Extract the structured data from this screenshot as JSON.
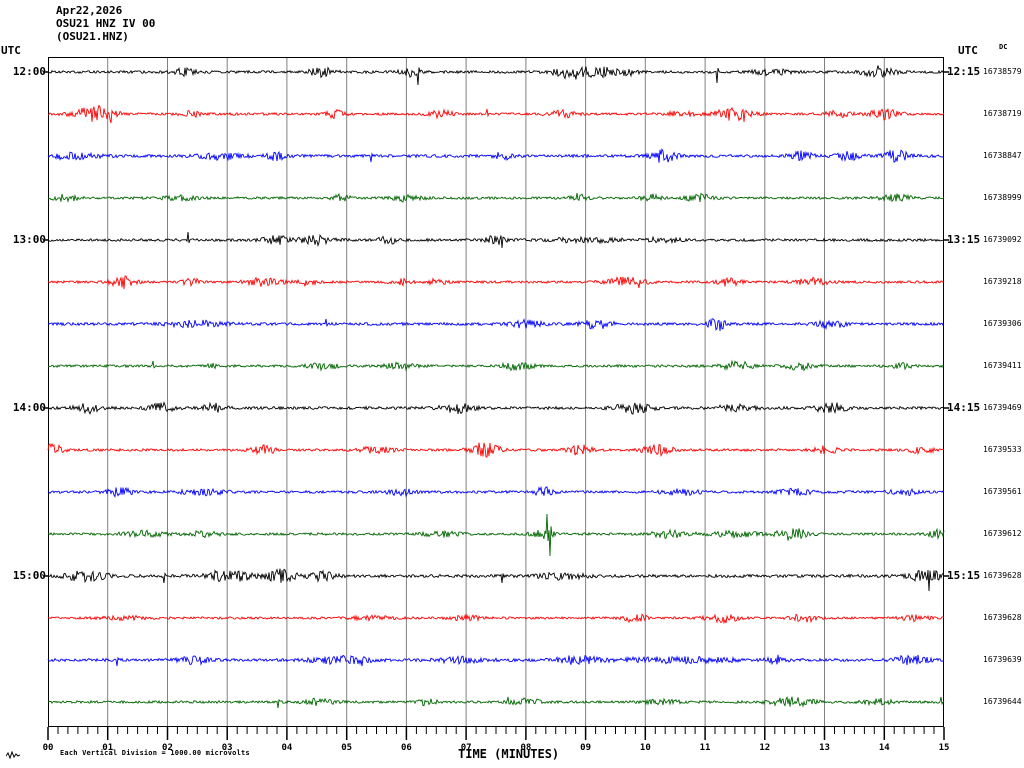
{
  "header": {
    "date": "Apr22,2026",
    "station": "OSU21 HNZ IV 00",
    "channel": "(OSU21.HNZ)"
  },
  "labels": {
    "utc_left": "UTC",
    "utc_right": "UTC",
    "dc": "DC",
    "xlabel": "TIME (MINUTES)",
    "scale_note": "Each Vertical Division = 1000.00 microvolts"
  },
  "chart_data": {
    "type": "seismogram-helicorder",
    "title": "OSU21 HNZ IV 00 (OSU21.HNZ) Apr22,2026",
    "x_axis": {
      "label": "TIME (MINUTES)",
      "min": 0,
      "max": 15,
      "tick_labels": [
        "00",
        "01",
        "02",
        "03",
        "04",
        "05",
        "06",
        "07",
        "08",
        "09",
        "10",
        "11",
        "12",
        "13",
        "14",
        "15"
      ],
      "minor_ticks_per_minute": 6
    },
    "grid": {
      "vertical_lines_every_minute": true,
      "color": "#808080"
    },
    "colors": {
      "black": "#000000",
      "red": "#ff0000",
      "blue": "#0000ff",
      "green": "#006600"
    },
    "scale_note": "Each Vertical Division = 1000.00 microvolts",
    "traces": [
      {
        "color": "black",
        "left_time": "12:00",
        "right_time": "12:15",
        "counter": "16738579",
        "base_amp": 1.3,
        "events": [
          {
            "m": 2.3,
            "w": 0.15,
            "a": 3
          },
          {
            "m": 4.55,
            "w": 0.2,
            "a": 4
          },
          {
            "m": 6.05,
            "w": 0.15,
            "a": 3
          },
          {
            "m": 8.8,
            "w": 0.3,
            "a": 5
          },
          {
            "m": 9.3,
            "w": 0.2,
            "a": 3.5
          },
          {
            "m": 9.7,
            "w": 0.15,
            "a": 3
          },
          {
            "m": 12.1,
            "w": 0.3,
            "a": 2
          },
          {
            "m": 13.9,
            "w": 0.25,
            "a": 4
          }
        ],
        "spikes": [
          {
            "m": 6.2,
            "s": -13
          },
          {
            "m": 11.2,
            "s": -11
          }
        ]
      },
      {
        "color": "red",
        "counter": "16738719",
        "base_amp": 1.2,
        "events": [
          {
            "m": 0.75,
            "w": 0.3,
            "a": 6
          },
          {
            "m": 1.0,
            "w": 0.15,
            "a": 4
          },
          {
            "m": 2.4,
            "w": 0.15,
            "a": 2.5
          },
          {
            "m": 4.8,
            "w": 0.15,
            "a": 3
          },
          {
            "m": 6.6,
            "w": 0.2,
            "a": 3
          },
          {
            "m": 8.6,
            "w": 0.2,
            "a": 3
          },
          {
            "m": 10.6,
            "w": 0.3,
            "a": 2
          },
          {
            "m": 11.45,
            "w": 0.3,
            "a": 5
          },
          {
            "m": 13.2,
            "w": 0.2,
            "a": 3
          },
          {
            "m": 14.0,
            "w": 0.25,
            "a": 4
          }
        ],
        "spikes": [
          {
            "m": 1.05,
            "s": -9
          },
          {
            "m": 7.35,
            "s": 5
          },
          {
            "m": 11.65,
            "s": -8
          }
        ]
      },
      {
        "color": "blue",
        "counter": "16738847",
        "base_amp": 1.4,
        "events": [
          {
            "m": 0.4,
            "w": 0.5,
            "a": 1.8
          },
          {
            "m": 2.9,
            "w": 0.35,
            "a": 2.2
          },
          {
            "m": 3.8,
            "w": 0.15,
            "a": 3
          },
          {
            "m": 7.6,
            "w": 0.15,
            "a": 2.5
          },
          {
            "m": 10.3,
            "w": 0.2,
            "a": 4.5
          },
          {
            "m": 12.6,
            "w": 0.2,
            "a": 3
          },
          {
            "m": 13.4,
            "w": 0.2,
            "a": 2.5
          },
          {
            "m": 14.2,
            "w": 0.2,
            "a": 4.5
          }
        ],
        "spikes": [
          {
            "m": 5.4,
            "s": -6
          }
        ]
      },
      {
        "color": "green",
        "counter": "16738999",
        "base_amp": 1.2,
        "events": [
          {
            "m": 0.3,
            "w": 0.2,
            "a": 3
          },
          {
            "m": 2.2,
            "w": 0.25,
            "a": 2.2
          },
          {
            "m": 4.9,
            "w": 0.15,
            "a": 2.5
          },
          {
            "m": 6.0,
            "w": 0.25,
            "a": 2.5
          },
          {
            "m": 8.9,
            "w": 0.15,
            "a": 3.5
          },
          {
            "m": 10.1,
            "w": 0.15,
            "a": 3
          },
          {
            "m": 10.9,
            "w": 0.2,
            "a": 3
          },
          {
            "m": 14.2,
            "w": 0.25,
            "a": 3
          }
        ],
        "spikes": [
          {
            "m": 8.85,
            "s": 5
          }
        ]
      },
      {
        "color": "black",
        "left_time": "13:00",
        "right_time": "13:15",
        "counter": "16739092",
        "base_amp": 1.3,
        "events": [
          {
            "m": 3.8,
            "w": 0.2,
            "a": 4
          },
          {
            "m": 4.45,
            "w": 0.3,
            "a": 3.5
          },
          {
            "m": 5.7,
            "w": 0.15,
            "a": 3
          },
          {
            "m": 7.5,
            "w": 0.15,
            "a": 4
          },
          {
            "m": 9.0,
            "w": 0.6,
            "a": 1.6
          },
          {
            "m": 10.3,
            "w": 0.3,
            "a": 1.8
          }
        ],
        "spikes": [
          {
            "m": 2.35,
            "s": 8
          },
          {
            "m": 7.6,
            "s": -8
          }
        ]
      },
      {
        "color": "red",
        "counter": "16739218",
        "base_amp": 1.2,
        "events": [
          {
            "m": 1.25,
            "w": 0.2,
            "a": 5
          },
          {
            "m": 2.4,
            "w": 0.15,
            "a": 3
          },
          {
            "m": 3.6,
            "w": 0.3,
            "a": 3
          },
          {
            "m": 4.35,
            "w": 0.15,
            "a": 3
          },
          {
            "m": 5.9,
            "w": 0.15,
            "a": 2.5
          },
          {
            "m": 6.5,
            "w": 0.15,
            "a": 2.5
          },
          {
            "m": 9.7,
            "w": 0.3,
            "a": 4
          },
          {
            "m": 11.4,
            "w": 0.2,
            "a": 3
          },
          {
            "m": 12.8,
            "w": 0.25,
            "a": 3
          }
        ],
        "spikes": [
          {
            "m": 9.9,
            "s": -6
          }
        ]
      },
      {
        "color": "blue",
        "counter": "16739306",
        "base_amp": 1.4,
        "events": [
          {
            "m": 2.5,
            "w": 0.45,
            "a": 2
          },
          {
            "m": 8.0,
            "w": 0.25,
            "a": 2.5
          },
          {
            "m": 9.2,
            "w": 0.25,
            "a": 3
          },
          {
            "m": 11.2,
            "w": 0.15,
            "a": 4
          },
          {
            "m": 13.1,
            "w": 0.25,
            "a": 2.5
          }
        ],
        "spikes": [
          {
            "m": 4.65,
            "s": 5
          },
          {
            "m": 11.25,
            "s": -7
          }
        ]
      },
      {
        "color": "green",
        "counter": "16739411",
        "base_amp": 1.2,
        "events": [
          {
            "m": 2.75,
            "w": 0.1,
            "a": 2.5
          },
          {
            "m": 4.6,
            "w": 0.25,
            "a": 2.5
          },
          {
            "m": 5.9,
            "w": 0.25,
            "a": 2.5
          },
          {
            "m": 7.85,
            "w": 0.25,
            "a": 3
          },
          {
            "m": 11.55,
            "w": 0.25,
            "a": 3.5
          },
          {
            "m": 12.6,
            "w": 0.25,
            "a": 3
          },
          {
            "m": 14.3,
            "w": 0.2,
            "a": 2
          }
        ],
        "spikes": [
          {
            "m": 1.75,
            "s": 5
          }
        ]
      },
      {
        "color": "black",
        "left_time": "14:00",
        "right_time": "14:15",
        "counter": "16739469",
        "base_amp": 1.4,
        "events": [
          {
            "m": 0.65,
            "w": 0.2,
            "a": 3.5
          },
          {
            "m": 1.9,
            "w": 0.2,
            "a": 3.5
          },
          {
            "m": 2.8,
            "w": 0.2,
            "a": 3
          },
          {
            "m": 6.85,
            "w": 0.25,
            "a": 3.5
          },
          {
            "m": 9.8,
            "w": 0.3,
            "a": 3.5
          },
          {
            "m": 11.5,
            "w": 0.3,
            "a": 2
          },
          {
            "m": 13.1,
            "w": 0.25,
            "a": 3.5
          }
        ],
        "spikes": []
      },
      {
        "color": "red",
        "counter": "16739533",
        "base_amp": 1.2,
        "events": [
          {
            "m": 0.1,
            "w": 0.15,
            "a": 5
          },
          {
            "m": 3.6,
            "w": 0.2,
            "a": 3.5
          },
          {
            "m": 5.5,
            "w": 0.25,
            "a": 3
          },
          {
            "m": 7.3,
            "w": 0.25,
            "a": 6
          },
          {
            "m": 8.9,
            "w": 0.2,
            "a": 4
          },
          {
            "m": 10.2,
            "w": 0.25,
            "a": 4
          },
          {
            "m": 13.0,
            "w": 0.2,
            "a": 3.5
          },
          {
            "m": 14.6,
            "w": 0.2,
            "a": 2.5
          }
        ],
        "spikes": [
          {
            "m": 7.35,
            "s": -7
          }
        ]
      },
      {
        "color": "blue",
        "counter": "16739561",
        "base_amp": 1.3,
        "events": [
          {
            "m": 1.2,
            "w": 0.2,
            "a": 3
          },
          {
            "m": 2.6,
            "w": 0.35,
            "a": 2
          },
          {
            "m": 5.9,
            "w": 0.2,
            "a": 2.5
          },
          {
            "m": 8.3,
            "w": 0.15,
            "a": 3
          },
          {
            "m": 10.6,
            "w": 0.3,
            "a": 2
          },
          {
            "m": 12.5,
            "w": 0.25,
            "a": 2.5
          },
          {
            "m": 14.3,
            "w": 0.2,
            "a": 3
          }
        ],
        "spikes": [
          {
            "m": 8.35,
            "s": 5
          }
        ]
      },
      {
        "color": "green",
        "counter": "16739612",
        "base_amp": 1.2,
        "events": [
          {
            "m": 1.6,
            "w": 0.35,
            "a": 2.2
          },
          {
            "m": 2.6,
            "w": 0.25,
            "a": 2.2
          },
          {
            "m": 6.6,
            "w": 0.3,
            "a": 2
          },
          {
            "m": 8.3,
            "w": 0.2,
            "a": 3
          },
          {
            "m": 10.4,
            "w": 0.35,
            "a": 2.8
          },
          {
            "m": 11.5,
            "w": 0.35,
            "a": 2.5
          },
          {
            "m": 12.45,
            "w": 0.25,
            "a": 5
          },
          {
            "m": 14.9,
            "w": 0.15,
            "a": 3
          }
        ],
        "spikes": [
          {
            "m": 8.35,
            "s": 20
          },
          {
            "m": 8.4,
            "s": -22
          }
        ]
      },
      {
        "color": "black",
        "left_time": "15:00",
        "right_time": "15:15",
        "counter": "16739628",
        "base_amp": 1.5,
        "events": [
          {
            "m": 0.65,
            "w": 0.3,
            "a": 4
          },
          {
            "m": 2.85,
            "w": 0.25,
            "a": 3
          },
          {
            "m": 3.2,
            "w": 0.2,
            "a": 3
          },
          {
            "m": 3.9,
            "w": 0.25,
            "a": 4
          },
          {
            "m": 4.6,
            "w": 0.2,
            "a": 3
          },
          {
            "m": 8.6,
            "w": 0.4,
            "a": 1.8
          },
          {
            "m": 14.7,
            "w": 0.25,
            "a": 4
          }
        ],
        "spikes": [
          {
            "m": 1.95,
            "s": -7
          },
          {
            "m": 7.6,
            "s": -7
          },
          {
            "m": 14.75,
            "s": -15
          }
        ]
      },
      {
        "color": "red",
        "counter": "16739628",
        "base_amp": 1.1,
        "events": [
          {
            "m": 1.3,
            "w": 0.4,
            "a": 1.5
          },
          {
            "m": 5.5,
            "w": 0.4,
            "a": 1.8
          },
          {
            "m": 7.0,
            "w": 0.3,
            "a": 2
          },
          {
            "m": 9.85,
            "w": 0.2,
            "a": 4
          },
          {
            "m": 11.3,
            "w": 0.25,
            "a": 4.5
          },
          {
            "m": 12.65,
            "w": 0.2,
            "a": 3.5
          },
          {
            "m": 14.5,
            "w": 0.25,
            "a": 2.5
          }
        ],
        "spikes": [
          {
            "m": 11.35,
            "s": -5
          }
        ]
      },
      {
        "color": "blue",
        "counter": "16739639",
        "base_amp": 1.4,
        "events": [
          {
            "m": 2.45,
            "w": 0.25,
            "a": 2.5
          },
          {
            "m": 4.9,
            "w": 0.5,
            "a": 2.5
          },
          {
            "m": 6.9,
            "w": 0.4,
            "a": 1.8
          },
          {
            "m": 8.85,
            "w": 0.3,
            "a": 3
          },
          {
            "m": 10.5,
            "w": 1.0,
            "a": 1.8
          },
          {
            "m": 12.2,
            "w": 0.15,
            "a": 3
          },
          {
            "m": 14.45,
            "w": 0.25,
            "a": 3.5
          }
        ],
        "spikes": [
          {
            "m": 1.15,
            "s": -6
          },
          {
            "m": 5.25,
            "s": -6
          }
        ]
      },
      {
        "color": "green",
        "counter": "16739644",
        "base_amp": 1.2,
        "events": [
          {
            "m": 4.55,
            "w": 0.25,
            "a": 2.5
          },
          {
            "m": 6.35,
            "w": 0.15,
            "a": 2.5
          },
          {
            "m": 8.0,
            "w": 0.25,
            "a": 2.5
          },
          {
            "m": 10.3,
            "w": 0.3,
            "a": 1.8
          },
          {
            "m": 12.45,
            "w": 0.35,
            "a": 3.5
          },
          {
            "m": 13.9,
            "w": 0.25,
            "a": 2.5
          }
        ],
        "spikes": [
          {
            "m": 3.85,
            "s": -6
          },
          {
            "m": 7.7,
            "s": 5
          },
          {
            "m": 14.95,
            "s": 5
          }
        ]
      }
    ]
  }
}
